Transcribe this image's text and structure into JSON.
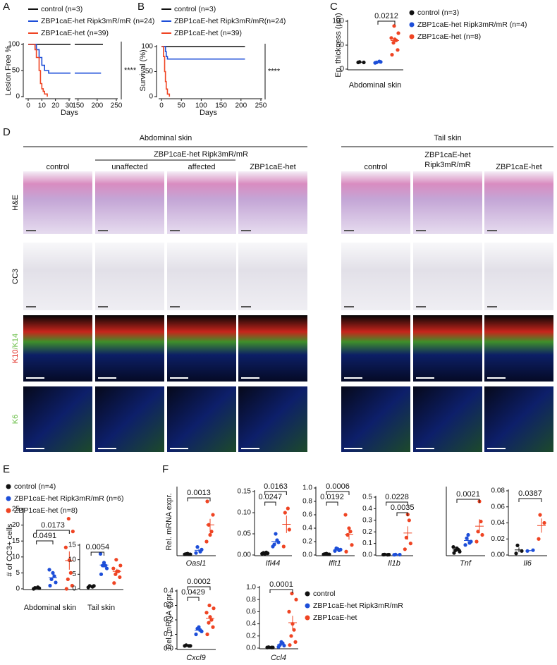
{
  "figure": {
    "panel_labels": [
      "A",
      "B",
      "C",
      "D",
      "E",
      "F"
    ]
  },
  "panel_d": {
    "sections": [
      "Abdominal skin",
      "Tail skin"
    ],
    "abdominal_group": "ZBP1caE-het Ripk3mR/mR",
    "abdominal_columns": [
      "control",
      "unaffected",
      "affected",
      "ZBP1caE-het"
    ],
    "tail_columns": [
      "control",
      [
        "ZBP1caE-het",
        "Ripk3mR/mR"
      ],
      "ZBP1caE-het"
    ],
    "rows": [
      "H&E",
      "CC3"
    ],
    "fluor_rows": [
      [
        "K10",
        "/K14"
      ],
      [
        "K6"
      ]
    ]
  },
  "chart_data": [
    {
      "type": "step",
      "ylabel": "Lesion Free %",
      "xlabel": "Days",
      "annotation": "****",
      "xlim": [
        0,
        250
      ],
      "xlim_segments": [
        [
          0,
          30
        ],
        [
          145,
          250
        ]
      ],
      "xticks": [
        0,
        10,
        20,
        30,
        150,
        200,
        250
      ],
      "ylim": [
        0,
        100
      ],
      "yticks": [
        0,
        50,
        100
      ],
      "series": [
        {
          "name": "control (n=3)",
          "color": "#111111",
          "x": [
            0,
            215
          ],
          "values": [
            100,
            100
          ]
        },
        {
          "name": "ZBP1caE-het Ripk3mR/mR (n=24)",
          "color": "#1d4ed8",
          "x": [
            0,
            6,
            8,
            10,
            12,
            15,
            210
          ],
          "values": [
            100,
            90,
            75,
            60,
            50,
            45,
            45
          ]
        },
        {
          "name": "ZBP1caE-het (n=39)",
          "color": "#ef4423",
          "x": [
            0,
            5,
            6,
            8,
            9,
            10,
            11,
            12,
            14
          ],
          "values": [
            100,
            90,
            75,
            50,
            25,
            15,
            10,
            5,
            0
          ]
        }
      ]
    },
    {
      "type": "step",
      "ylabel": "Survival (%)",
      "xlabel": "Days",
      "annotation": "****",
      "xlim": [
        0,
        250
      ],
      "xticks": [
        0,
        50,
        100,
        150,
        200,
        250
      ],
      "ylim": [
        0,
        100
      ],
      "yticks": [
        0,
        50,
        100
      ],
      "series": [
        {
          "name": "control (n=3)",
          "color": "#111111",
          "x": [
            0,
            210
          ],
          "values": [
            100,
            100
          ]
        },
        {
          "name": "ZBP1caE-het Ripk3mR/mR(n=24)",
          "color": "#1d4ed8",
          "x": [
            0,
            10,
            12,
            15,
            210
          ],
          "values": [
            100,
            90,
            80,
            75,
            75
          ]
        },
        {
          "name": "ZBP1caE-het (n=39)",
          "color": "#ef4423",
          "x": [
            0,
            5,
            8,
            10,
            12,
            15,
            20
          ],
          "values": [
            100,
            80,
            50,
            30,
            15,
            5,
            0
          ]
        }
      ]
    },
    {
      "type": "dotplot",
      "ylabel": "Ep. thickness (µm)",
      "xlabel": "Abdominal skin",
      "ylim": [
        0,
        100
      ],
      "yticks": [
        0,
        50,
        100
      ],
      "comparisons": [
        {
          "label": "0.0212",
          "groups": [
            1,
            2
          ]
        }
      ],
      "series": [
        {
          "name": "control (n=3)",
          "color": "#111111",
          "values": [
            14,
            14,
            15
          ]
        },
        {
          "name": "ZBP1caE-het Ripk3mR/mR (n=4)",
          "color": "#1d4ed8",
          "values": [
            13,
            15,
            14,
            16
          ]
        },
        {
          "name": "ZBP1caE-het (n=8)",
          "color": "#ef4423",
          "values": [
            30,
            40,
            55,
            60,
            62,
            65,
            75,
            90
          ]
        }
      ]
    },
    {
      "type": "dotplot",
      "ylabel": "# of CC3+ cells",
      "xlabel": "Abdominal skin",
      "ylim": [
        0,
        25
      ],
      "yticks": [
        0,
        5,
        10,
        15,
        20,
        25
      ],
      "comparisons": [
        {
          "label": "0.0173",
          "groups": [
            0,
            2
          ]
        },
        {
          "label": "0.0491",
          "groups": [
            0,
            1
          ]
        }
      ],
      "series": [
        {
          "name": "control (n=4)",
          "color": "#111111",
          "values": [
            0,
            0.2,
            0.3,
            0.5
          ]
        },
        {
          "name": "ZBP1caE-het Ripk3mR/mR (n=6)",
          "color": "#1d4ed8",
          "values": [
            1,
            2,
            3,
            4,
            5,
            6
          ]
        },
        {
          "name": "ZBP1caE-het (n=8)",
          "color": "#ef4423",
          "values": [
            0,
            1,
            3,
            5,
            9,
            13,
            18,
            22
          ]
        }
      ]
    },
    {
      "type": "dotplot",
      "xlabel": "Tail skin",
      "ylim": [
        0,
        15
      ],
      "yticks": [
        0,
        5,
        10,
        15
      ],
      "comparisons": [
        {
          "label": "0.0054",
          "groups": [
            0,
            1
          ]
        }
      ],
      "series": [
        {
          "color": "#111111",
          "values": [
            0.5,
            1,
            1,
            0.7
          ]
        },
        {
          "color": "#1d4ed8",
          "values": [
            5,
            7,
            8,
            8,
            9,
            12
          ]
        },
        {
          "color": "#ef4423",
          "values": [
            2,
            4,
            5,
            6,
            6,
            7,
            8,
            10
          ]
        }
      ]
    },
    {
      "type": "dotplot",
      "ylabel": "Rel. mRNA expr.",
      "xlabel": "Oasl1",
      "xlabel_style": "italic",
      "ylim": [
        0,
        1
      ],
      "comparisons": [
        {
          "label": "0.0013",
          "groups": [
            0,
            2
          ]
        }
      ],
      "series": [
        {
          "color": "#111111",
          "values": [
            0.01,
            0.01,
            0.015,
            0.01,
            0.02
          ]
        },
        {
          "color": "#1d4ed8",
          "values": [
            0.03,
            0.08,
            0.12,
            0.05
          ]
        },
        {
          "color": "#ef4423",
          "values": [
            0.8,
            0.6,
            0.45,
            0.35,
            0.3,
            0.2
          ]
        }
      ]
    },
    {
      "type": "dotplot",
      "xlabel": "Ifi44",
      "xlabel_style": "italic",
      "ylim": [
        0,
        0.15
      ],
      "yticks": [
        {
          "value": 0,
          "label": "0.00"
        },
        0.05,
        {
          "value": 0.1,
          "label": "0.10"
        },
        0.15
      ],
      "comparisons": [
        {
          "label": "0.0163",
          "groups": [
            0,
            2
          ]
        },
        {
          "label": "0.0247",
          "groups": [
            0,
            1
          ]
        }
      ],
      "series": [
        {
          "color": "#111111",
          "values": [
            0.003,
            0.004,
            0.005,
            0.006,
            0.002
          ]
        },
        {
          "color": "#1d4ed8",
          "values": [
            0.02,
            0.03,
            0.025,
            0.035,
            0.05
          ]
        },
        {
          "color": "#ef4423",
          "values": [
            0.02,
            0.06,
            0.1,
            0.11
          ]
        }
      ]
    },
    {
      "type": "dotplot",
      "xlabel": "Ifit1",
      "xlabel_style": "italic",
      "ylim": [
        0,
        1
      ],
      "yticks": [
        {
          "value": 0,
          "label": "0.0"
        },
        0.2,
        0.4,
        0.6,
        0.8,
        {
          "value": 1,
          "label": "1.0"
        }
      ],
      "comparisons": [
        {
          "label": "0.0006",
          "groups": [
            0,
            2
          ]
        },
        {
          "label": "0.0192",
          "groups": [
            0,
            1
          ]
        }
      ],
      "series": [
        {
          "color": "#111111",
          "values": [
            0.01,
            0.01,
            0.015,
            0.01,
            0.02
          ]
        },
        {
          "color": "#1d4ed8",
          "values": [
            0.06,
            0.08,
            0.1,
            0.07,
            0.09
          ]
        },
        {
          "color": "#ef4423",
          "values": [
            0.05,
            0.15,
            0.3,
            0.35,
            0.4,
            0.6
          ]
        }
      ]
    },
    {
      "type": "dotplot",
      "xlabel": "Il1b",
      "xlabel_style": "italic",
      "ylim": [
        0,
        0.5
      ],
      "yticks": [
        {
          "value": 0,
          "label": "0.0"
        },
        0.1,
        0.2,
        0.3,
        0.4,
        0.5
      ],
      "comparisons": [
        {
          "label": "0.0228",
          "groups": [
            0,
            2
          ]
        },
        {
          "label": "0.0035",
          "groups": [
            1,
            2
          ]
        }
      ],
      "series": [
        {
          "color": "#111111",
          "values": [
            0.003,
            0.003,
            0.004,
            0.002
          ]
        },
        {
          "color": "#1d4ed8",
          "values": [
            0.002,
            0.003,
            0.004
          ]
        },
        {
          "color": "#ef4423",
          "values": [
            0.05,
            0.1,
            0.15,
            0.3,
            0.35
          ]
        }
      ]
    },
    {
      "type": "dotplot",
      "xlabel": "Tnf",
      "xlabel_style": "italic",
      "ylim": [
        0,
        1
      ],
      "comparisons": [
        {
          "label": "0.0021",
          "groups": [
            0,
            2
          ]
        }
      ],
      "series": [
        {
          "color": "#111111",
          "values": [
            0.03,
            0.05,
            0.07,
            0.08,
            0.1,
            0.12
          ]
        },
        {
          "color": "#1d4ed8",
          "values": [
            0.15,
            0.2,
            0.25,
            0.18,
            0.3
          ]
        },
        {
          "color": "#ef4423",
          "values": [
            0.2,
            0.3,
            0.35,
            0.5,
            0.8
          ]
        }
      ]
    },
    {
      "type": "dotplot",
      "xlabel": "Il6",
      "xlabel_style": "italic",
      "ylim": [
        0,
        0.08
      ],
      "yticks": [
        {
          "value": 0,
          "label": "0.00"
        },
        0.02,
        0.04,
        0.06,
        0.08
      ],
      "comparisons": [
        {
          "label": "0.0387",
          "groups": [
            0,
            2
          ]
        }
      ],
      "series": [
        {
          "color": "#111111",
          "values": [
            0.002,
            0.005,
            0.012
          ]
        },
        {
          "color": "#1d4ed8",
          "values": [
            0.005,
            0.006
          ]
        },
        {
          "color": "#ef4423",
          "values": [
            0.02,
            0.04,
            0.05
          ]
        }
      ]
    },
    {
      "type": "dotplot",
      "ylabel": "Rel. mRNA expr.",
      "xlabel": "Cxcl9",
      "xlabel_style": "italic",
      "ylim": [
        0,
        0.4
      ],
      "yticks": [
        {
          "value": 0,
          "label": "0.0"
        },
        0.1,
        0.2,
        0.3,
        0.4
      ],
      "comparisons": [
        {
          "label": "0.0002",
          "groups": [
            0,
            2
          ]
        },
        {
          "label": "0.0429",
          "groups": [
            0,
            1
          ]
        }
      ],
      "series": [
        {
          "color": "#111111",
          "values": [
            0.02,
            0.02,
            0.025,
            0.02
          ]
        },
        {
          "color": "#1d4ed8",
          "values": [
            0.1,
            0.12,
            0.14,
            0.13,
            0.15
          ]
        },
        {
          "color": "#ef4423",
          "values": [
            0.1,
            0.15,
            0.18,
            0.2,
            0.22,
            0.25,
            0.28,
            0.3
          ]
        }
      ]
    },
    {
      "type": "dotplot",
      "xlabel": "Ccl4",
      "xlabel_style": "italic",
      "ylim": [
        0,
        1
      ],
      "yticks": [
        {
          "value": 0,
          "label": "0.0"
        },
        0.2,
        0.4,
        0.6,
        0.8,
        {
          "value": 1,
          "label": "1.0"
        }
      ],
      "comparisons": [
        {
          "label": "0.0001",
          "groups": [
            0,
            2
          ]
        }
      ],
      "series": [
        {
          "name": "control",
          "color": "#111111",
          "values": [
            0.01,
            0.01,
            0.015,
            0.01
          ]
        },
        {
          "name": "ZBP1caE-het Ripk3mR/mR",
          "color": "#1d4ed8",
          "values": [
            0.02,
            0.04,
            0.05,
            0.08,
            0.1
          ]
        },
        {
          "name": "ZBP1caE-het",
          "color": "#ef4423",
          "values": [
            0.05,
            0.1,
            0.2,
            0.3,
            0.4,
            0.6,
            0.8,
            0.9
          ]
        }
      ]
    }
  ]
}
